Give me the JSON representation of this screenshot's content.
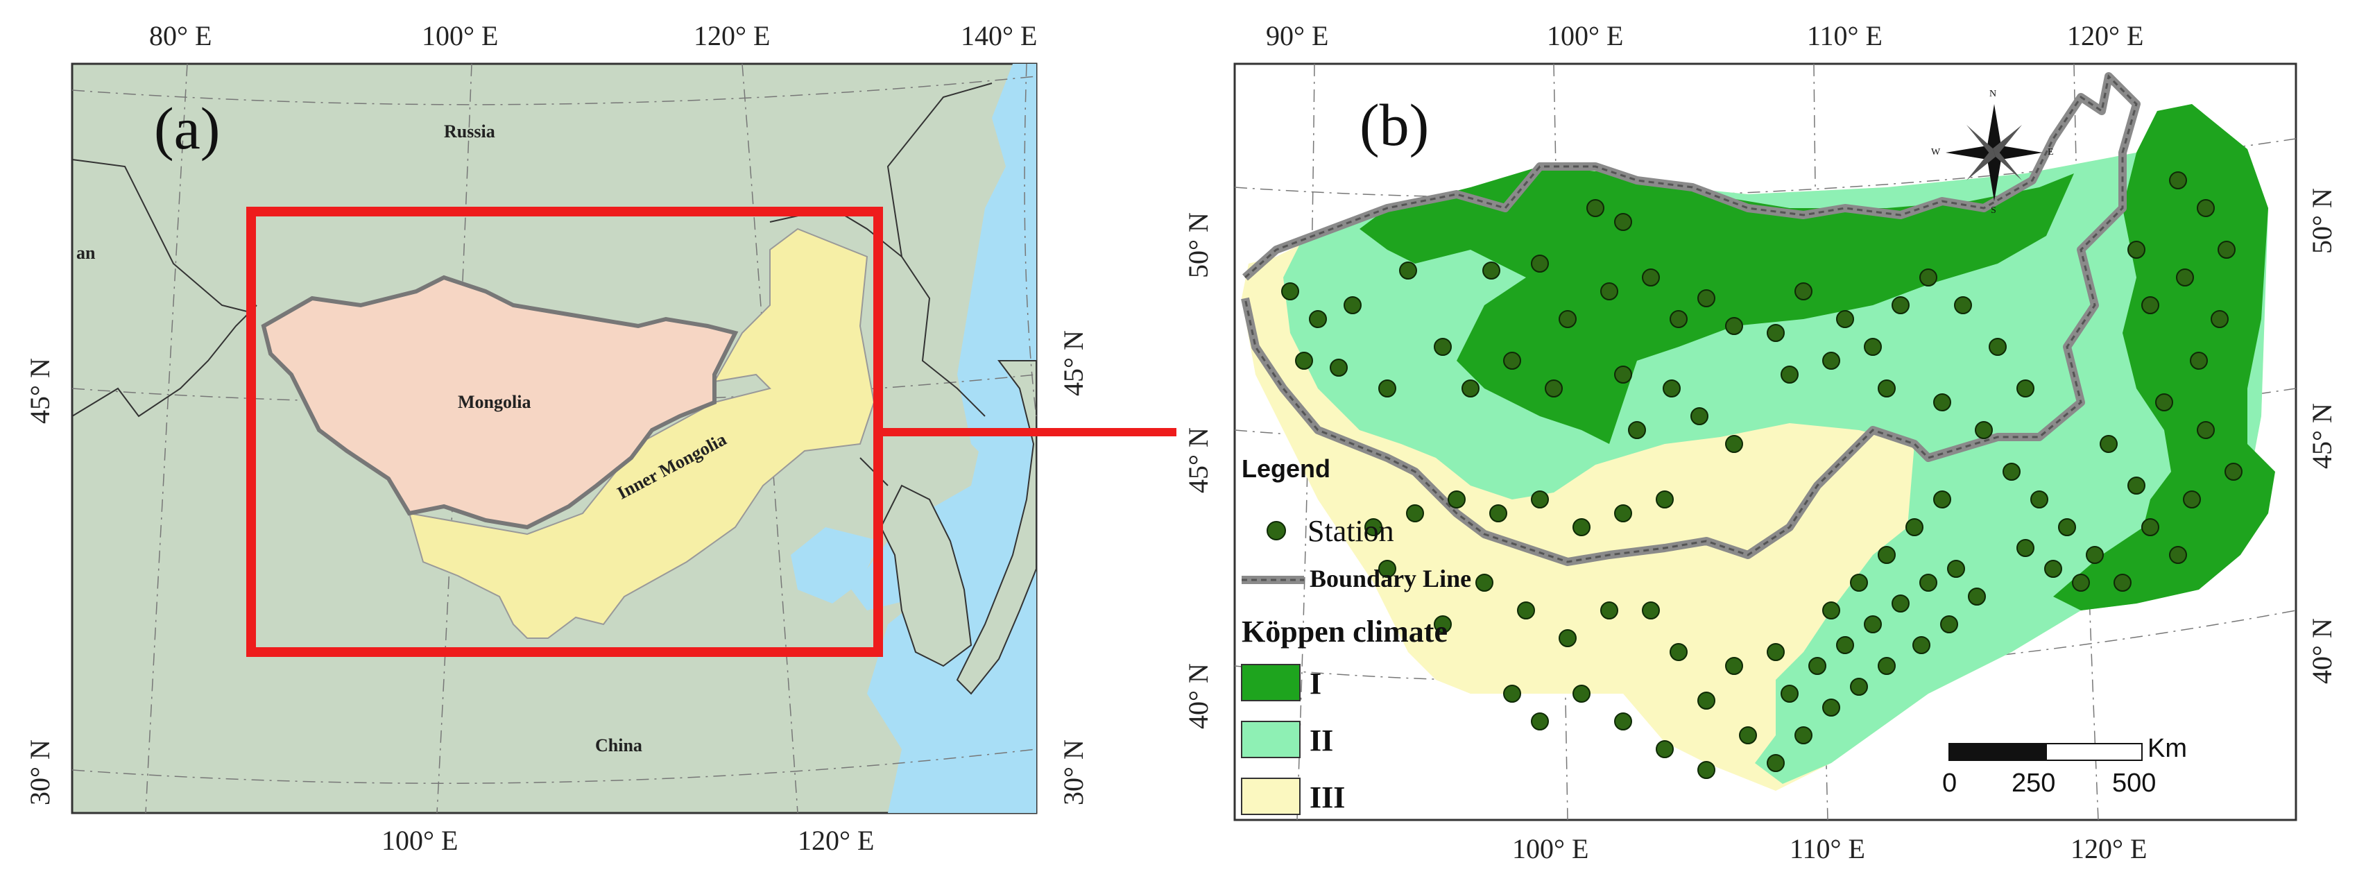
{
  "panel_a": {
    "label": "(a)",
    "top_ticks": [
      "80° E",
      "100° E",
      "120° E",
      "140° E"
    ],
    "bottom_ticks": [
      "100° E",
      "120° E"
    ],
    "left_ticks": [
      "45° N",
      "30° N"
    ],
    "right_ticks": [
      "45° N",
      "30° N"
    ],
    "regions": {
      "russia": "Russia",
      "mongolia": "Mongolia",
      "inner_mongolia": "Inner Mongolia",
      "china": "China",
      "partial_left": "an"
    },
    "colors": {
      "land": "#c8d8c4",
      "sea": "#a8def6",
      "mongolia": "#f6d6c4",
      "inner_mongolia": "#f6efa6",
      "frame": "#ee1c1c"
    }
  },
  "panel_b": {
    "label": "(b)",
    "top_ticks": [
      "90° E",
      "100° E",
      "110° E",
      "120° E"
    ],
    "bottom_ticks": [
      "100° E",
      "110° E",
      "120° E"
    ],
    "left_ticks": [
      "50° N",
      "45° N",
      "40° N"
    ],
    "right_ticks": [
      "50° N",
      "45° N",
      "40° N"
    ],
    "legend": {
      "title": "Legend",
      "station": "Station",
      "boundary": "Boundary Line",
      "climate_title": "Köppen climate",
      "classes": [
        {
          "label": "I",
          "color": "#1ea41e"
        },
        {
          "label": "II",
          "color": "#8ef0b4"
        },
        {
          "label": "III",
          "color": "#fbf8c0"
        }
      ]
    },
    "scale": {
      "unit": "Km",
      "ticks": [
        "0",
        "250",
        "500"
      ]
    },
    "compass": {
      "n": "N",
      "s": "S",
      "e": "E",
      "w": "W"
    },
    "station_color": "#2e6614"
  }
}
